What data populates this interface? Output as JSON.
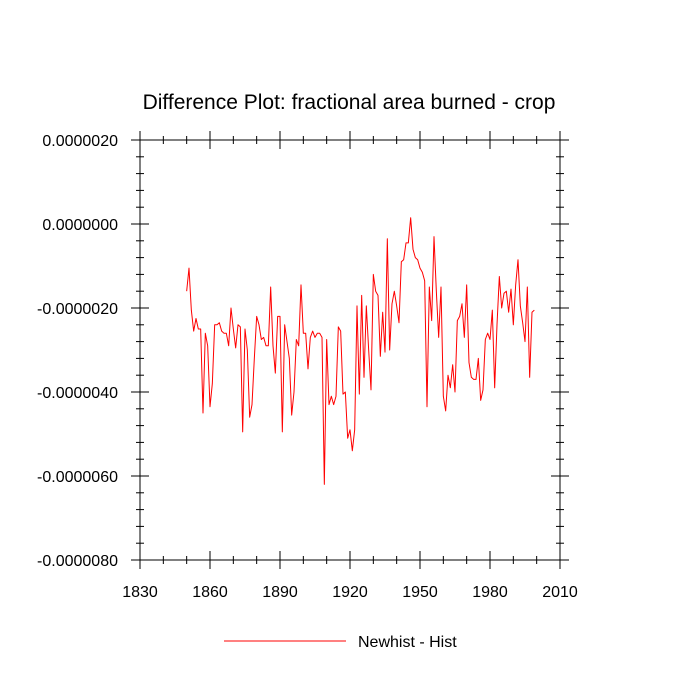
{
  "chart_data": {
    "type": "line",
    "title": "Difference Plot: fractional area burned - crop",
    "xlabel": "",
    "ylabel": "",
    "xlim": [
      1830,
      2010
    ],
    "ylim": [
      -8e-06,
      2e-06
    ],
    "xticks": [
      1830,
      1860,
      1890,
      1920,
      1950,
      1980,
      2010
    ],
    "yticks": [
      -8e-06,
      -6e-06,
      -4e-06,
      -2e-06,
      0.0,
      2e-06
    ],
    "x_tick_labels": [
      "1830",
      "1860",
      "1890",
      "1920",
      "1950",
      "1980",
      "2010"
    ],
    "y_tick_labels": [
      "-0.0000080",
      "-0.0000060",
      "-0.0000040",
      "-0.0000020",
      "0.0000000",
      "0.0000020"
    ],
    "grid": false,
    "legend_position": "bottom-center",
    "series": [
      {
        "name": "Newhist - Hist",
        "color": "#ff0000",
        "x_start": 1850,
        "x_step": 1,
        "values": [
          -1.6e-06,
          -1.05e-06,
          -2.05e-06,
          -2.55e-06,
          -2.25e-06,
          -2.5e-06,
          -2.5e-06,
          -4.5e-06,
          -2.6e-06,
          -2.9e-06,
          -4.35e-06,
          -3.8e-06,
          -2.4e-06,
          -2.4e-06,
          -2.35e-06,
          -2.55e-06,
          -2.6e-06,
          -2.6e-06,
          -2.9e-06,
          -2e-06,
          -2.5e-06,
          -2.95e-06,
          -2.4e-06,
          -2.45e-06,
          -4.95e-06,
          -2.5e-06,
          -3e-06,
          -4.6e-06,
          -4.3e-06,
          -3.2e-06,
          -2.2e-06,
          -2.4e-06,
          -2.75e-06,
          -2.7e-06,
          -2.9e-06,
          -2.9e-06,
          -1.5e-06,
          -2.9e-06,
          -3.55e-06,
          -2.2e-06,
          -2.2e-06,
          -4.95e-06,
          -2.4e-06,
          -2.8e-06,
          -3.2e-06,
          -4.55e-06,
          -4e-06,
          -2.75e-06,
          -2.9e-06,
          -1.45e-06,
          -2.6e-06,
          -2.6e-06,
          -3.45e-06,
          -2.7e-06,
          -2.55e-06,
          -2.7e-06,
          -2.6e-06,
          -2.6e-06,
          -2.7e-06,
          -6.2e-06,
          -2.75e-06,
          -4.3e-06,
          -4.1e-06,
          -4.3e-06,
          -4.1e-06,
          -2.45e-06,
          -2.55e-06,
          -4.05e-06,
          -4e-06,
          -5.1e-06,
          -4.9e-06,
          -5.4e-06,
          -4.9e-06,
          -1.95e-06,
          -4.05e-06,
          -1.7e-06,
          -3.65e-06,
          -1.95e-06,
          -3e-06,
          -3.95e-06,
          -1.2e-06,
          -1.6e-06,
          -1.7e-06,
          -3.15e-06,
          -2.1e-06,
          -3.05e-06,
          -3.5e-07,
          -3e-06,
          -1.9e-06,
          -1.6e-06,
          -1.95e-06,
          -2.35e-06,
          -9e-07,
          -8.5e-07,
          -4.5e-07,
          -4.5e-07,
          1.5e-07,
          -6e-07,
          -8e-07,
          -8.5e-07,
          -1.05e-06,
          -1.15e-06,
          -1.35e-06,
          -4.35e-06,
          -1.5e-06,
          -2.3e-06,
          -3e-07,
          -1.6e-06,
          -2.7e-06,
          -1.5e-06,
          -4.1e-06,
          -4.45e-06,
          -3.6e-06,
          -3.9e-06,
          -3.35e-06,
          -4e-06,
          -2.3e-06,
          -2.2e-06,
          -1.9e-06,
          -2.7e-06,
          -1.45e-06,
          -3.3e-06,
          -3.65e-06,
          -3.7e-06,
          -3.7e-06,
          -3.2e-06,
          -4.2e-06,
          -3.95e-06,
          -2.75e-06,
          -2.6e-06,
          -2.75e-06,
          -2.05e-06,
          -3.9e-06,
          -2.4e-06,
          -1.25e-06,
          -2e-06,
          -1.65e-06,
          -1.6e-06,
          -2.1e-06,
          -1.55e-06,
          -2.4e-06,
          -1.45e-06,
          -8.5e-07,
          -1.95e-06,
          -2.35e-06,
          -2.8e-06,
          -1.5e-06,
          -3.65e-06,
          -2.1e-06,
          -2.05e-06
        ]
      }
    ]
  }
}
